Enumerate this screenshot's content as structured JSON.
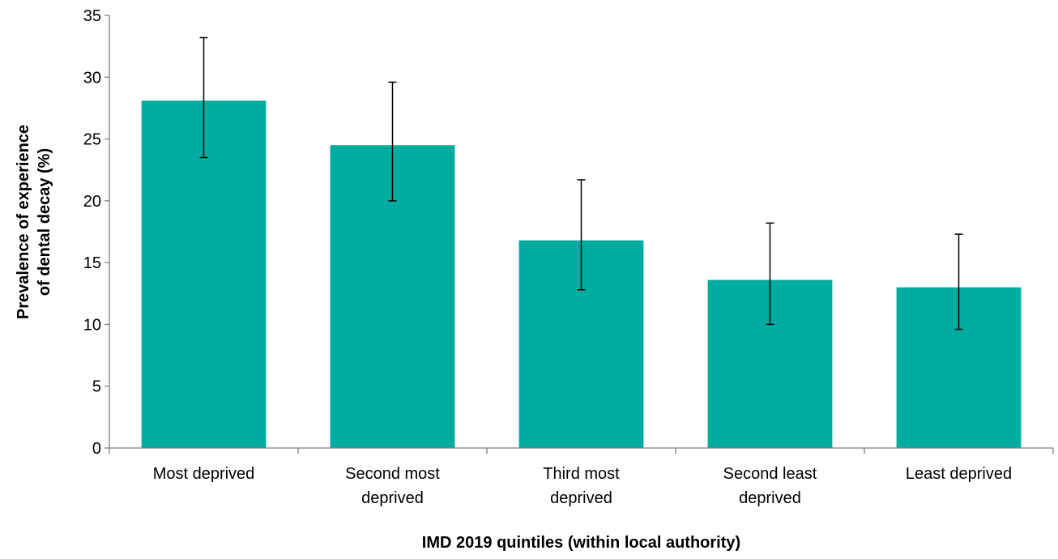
{
  "chart_data": {
    "type": "bar",
    "categories": [
      [
        "Most deprived"
      ],
      [
        "Second most",
        "deprived"
      ],
      [
        "Third most",
        "deprived"
      ],
      [
        "Second least",
        "deprived"
      ],
      [
        "Least deprived"
      ]
    ],
    "values": [
      28.1,
      24.5,
      16.8,
      13.6,
      13.0
    ],
    "error_lower": [
      23.5,
      20.0,
      12.8,
      10.0,
      9.6
    ],
    "error_upper": [
      33.2,
      29.6,
      21.7,
      18.2,
      17.3
    ],
    "xlabel": "IMD 2019 quintiles (within local authority)",
    "ylabel": [
      "Prevalence of experience",
      "of dental decay (%)"
    ],
    "ylim": [
      0,
      35
    ],
    "yticks": [
      0,
      5,
      10,
      15,
      20,
      25,
      30,
      35
    ],
    "grid": false,
    "legend": "none",
    "colors": {
      "bar": "#00ac9f",
      "axis": "#808080",
      "error_bar": "#000000"
    }
  }
}
